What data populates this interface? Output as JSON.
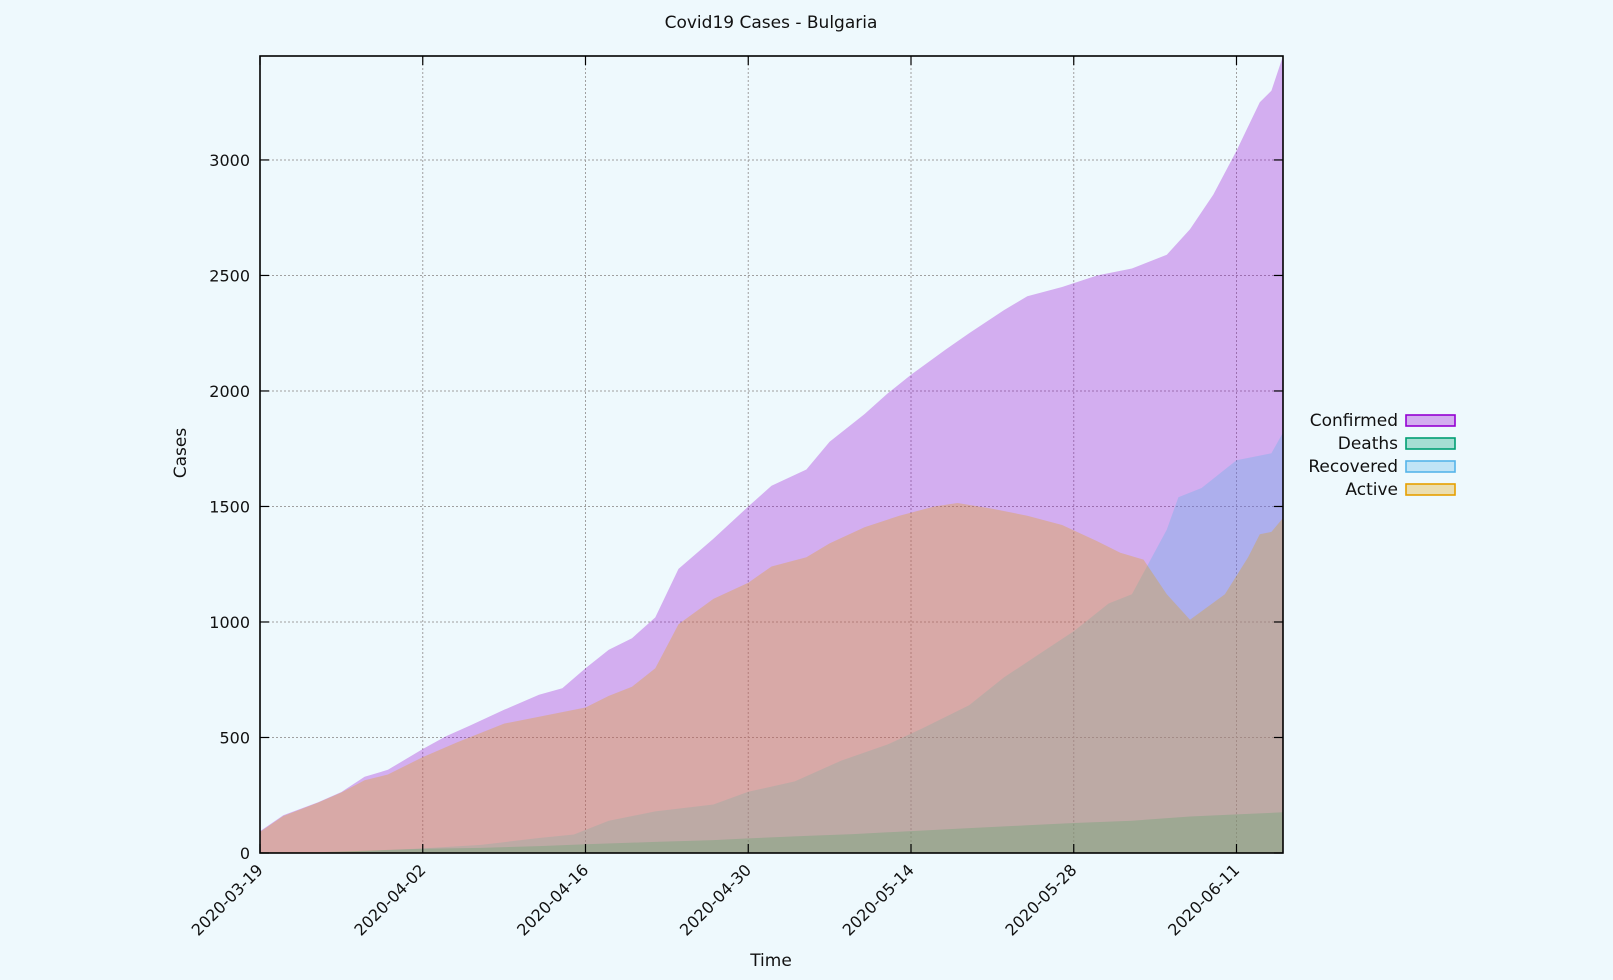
{
  "colors": {
    "background": "#eef9fd",
    "confirmed": "#9400d3",
    "deaths": "#009e73",
    "recovered": "#56b4e9",
    "active": "#e69f00",
    "grid": "#a0a0a0",
    "axis": "#000000"
  },
  "chart_data": {
    "type": "area",
    "title": "Covid19 Cases - Bulgaria",
    "xlabel": "Time",
    "ylabel": "Cases",
    "x_range": [
      "2020-03-19",
      "2020-06-15"
    ],
    "ylim": [
      0,
      3450
    ],
    "grid": true,
    "legend_position": "right",
    "x_ticks": [
      "2020-03-19",
      "2020-04-02",
      "2020-04-16",
      "2020-04-30",
      "2020-05-14",
      "2020-05-28",
      "2020-06-11"
    ],
    "y_ticks": [
      0,
      500,
      1000,
      1500,
      2000,
      2500,
      3000
    ],
    "series": [
      {
        "name": "Confirmed",
        "color": "#9400d3",
        "points": [
          [
            "2020-03-19",
            94
          ],
          [
            "2020-03-21",
            163
          ],
          [
            "2020-03-24",
            220
          ],
          [
            "2020-03-26",
            264
          ],
          [
            "2020-03-28",
            330
          ],
          [
            "2020-03-30",
            360
          ],
          [
            "2020-04-02",
            450
          ],
          [
            "2020-04-04",
            505
          ],
          [
            "2020-04-06",
            550
          ],
          [
            "2020-04-09",
            620
          ],
          [
            "2020-04-12",
            685
          ],
          [
            "2020-04-14",
            713
          ],
          [
            "2020-04-16",
            800
          ],
          [
            "2020-04-18",
            880
          ],
          [
            "2020-04-20",
            930
          ],
          [
            "2020-04-22",
            1020
          ],
          [
            "2020-04-24",
            1230
          ],
          [
            "2020-04-27",
            1360
          ],
          [
            "2020-04-30",
            1500
          ],
          [
            "2020-05-02",
            1590
          ],
          [
            "2020-05-05",
            1660
          ],
          [
            "2020-05-07",
            1780
          ],
          [
            "2020-05-10",
            1900
          ],
          [
            "2020-05-12",
            1990
          ],
          [
            "2020-05-14",
            2070
          ],
          [
            "2020-05-17",
            2180
          ],
          [
            "2020-05-19",
            2250
          ],
          [
            "2020-05-22",
            2350
          ],
          [
            "2020-05-24",
            2410
          ],
          [
            "2020-05-27",
            2450
          ],
          [
            "2020-05-30",
            2500
          ],
          [
            "2020-06-02",
            2530
          ],
          [
            "2020-06-05",
            2590
          ],
          [
            "2020-06-07",
            2700
          ],
          [
            "2020-06-09",
            2850
          ],
          [
            "2020-06-11",
            3040
          ],
          [
            "2020-06-13",
            3250
          ],
          [
            "2020-06-14",
            3300
          ],
          [
            "2020-06-15",
            3450
          ]
        ]
      },
      {
        "name": "Deaths",
        "color": "#009e73",
        "points": [
          [
            "2020-03-19",
            3
          ],
          [
            "2020-03-24",
            3
          ],
          [
            "2020-03-28",
            10
          ],
          [
            "2020-04-02",
            18
          ],
          [
            "2020-04-07",
            22
          ],
          [
            "2020-04-12",
            30
          ],
          [
            "2020-04-16",
            38
          ],
          [
            "2020-04-22",
            48
          ],
          [
            "2020-04-27",
            56
          ],
          [
            "2020-04-30",
            63
          ],
          [
            "2020-05-05",
            74
          ],
          [
            "2020-05-09",
            82
          ],
          [
            "2020-05-14",
            95
          ],
          [
            "2020-05-19",
            108
          ],
          [
            "2020-05-24",
            120
          ],
          [
            "2020-05-28",
            130
          ],
          [
            "2020-06-02",
            140
          ],
          [
            "2020-06-07",
            158
          ],
          [
            "2020-06-11",
            167
          ],
          [
            "2020-06-15",
            176
          ]
        ]
      },
      {
        "name": "Recovered",
        "color": "#56b4e9",
        "points": [
          [
            "2020-03-19",
            0
          ],
          [
            "2020-03-26",
            0
          ],
          [
            "2020-03-29",
            10
          ],
          [
            "2020-04-02",
            20
          ],
          [
            "2020-04-07",
            35
          ],
          [
            "2020-04-12",
            65
          ],
          [
            "2020-04-15",
            80
          ],
          [
            "2020-04-18",
            140
          ],
          [
            "2020-04-22",
            180
          ],
          [
            "2020-04-27",
            210
          ],
          [
            "2020-04-30",
            265
          ],
          [
            "2020-05-04",
            310
          ],
          [
            "2020-05-08",
            400
          ],
          [
            "2020-05-12",
            470
          ],
          [
            "2020-05-15",
            540
          ],
          [
            "2020-05-19",
            640
          ],
          [
            "2020-05-22",
            760
          ],
          [
            "2020-05-25",
            860
          ],
          [
            "2020-05-28",
            960
          ],
          [
            "2020-05-31",
            1080
          ],
          [
            "2020-06-02",
            1120
          ],
          [
            "2020-06-05",
            1400
          ],
          [
            "2020-06-06",
            1540
          ],
          [
            "2020-06-08",
            1580
          ],
          [
            "2020-06-11",
            1700
          ],
          [
            "2020-06-14",
            1730
          ],
          [
            "2020-06-15",
            1820
          ]
        ]
      },
      {
        "name": "Active",
        "color": "#e69f00",
        "points": [
          [
            "2020-03-19",
            91
          ],
          [
            "2020-03-21",
            160
          ],
          [
            "2020-03-24",
            218
          ],
          [
            "2020-03-26",
            262
          ],
          [
            "2020-03-28",
            315
          ],
          [
            "2020-03-30",
            340
          ],
          [
            "2020-04-02",
            415
          ],
          [
            "2020-04-05",
            480
          ],
          [
            "2020-04-09",
            560
          ],
          [
            "2020-04-12",
            590
          ],
          [
            "2020-04-16",
            630
          ],
          [
            "2020-04-18",
            680
          ],
          [
            "2020-04-20",
            720
          ],
          [
            "2020-04-22",
            800
          ],
          [
            "2020-04-24",
            990
          ],
          [
            "2020-04-27",
            1100
          ],
          [
            "2020-04-30",
            1170
          ],
          [
            "2020-05-02",
            1240
          ],
          [
            "2020-05-05",
            1280
          ],
          [
            "2020-05-07",
            1340
          ],
          [
            "2020-05-10",
            1410
          ],
          [
            "2020-05-13",
            1460
          ],
          [
            "2020-05-16",
            1500
          ],
          [
            "2020-05-18",
            1515
          ],
          [
            "2020-05-21",
            1490
          ],
          [
            "2020-05-24",
            1460
          ],
          [
            "2020-05-27",
            1420
          ],
          [
            "2020-05-30",
            1350
          ],
          [
            "2020-06-01",
            1300
          ],
          [
            "2020-06-03",
            1270
          ],
          [
            "2020-06-05",
            1120
          ],
          [
            "2020-06-07",
            1010
          ],
          [
            "2020-06-10",
            1120
          ],
          [
            "2020-06-12",
            1280
          ],
          [
            "2020-06-13",
            1380
          ],
          [
            "2020-06-14",
            1390
          ],
          [
            "2020-06-15",
            1450
          ]
        ]
      }
    ]
  }
}
